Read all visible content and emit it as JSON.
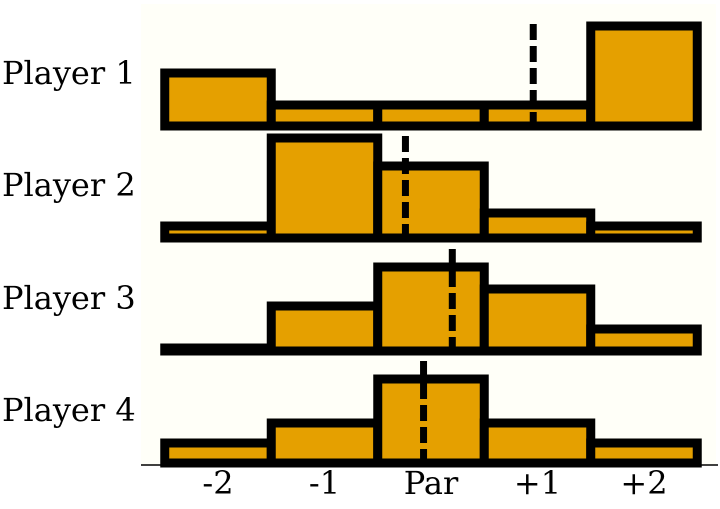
{
  "colors": {
    "bar_fill": "#e5a000",
    "bar_edge": "#000000",
    "plot_background": "#fffff8",
    "mean_line": "#000000"
  },
  "chart_data": {
    "type": "bar",
    "categories": [
      "-2",
      "-1",
      "Par",
      "+1",
      "+2"
    ],
    "grid": false,
    "legend": "none",
    "series": [
      {
        "name": "Player 1",
        "values": [
          0.53,
          0.21,
          0.21,
          0.21,
          1.0
        ],
        "mean": 0.96
      },
      {
        "name": "Player 2",
        "values": [
          0.12,
          1.0,
          0.72,
          0.25,
          0.12
        ],
        "mean": -0.24
      },
      {
        "name": "Player 3",
        "values": [
          0.0,
          0.45,
          0.84,
          0.62,
          0.22
        ],
        "mean": 0.2
      },
      {
        "name": "Player 4",
        "values": [
          0.2,
          0.4,
          0.84,
          0.4,
          0.2
        ],
        "mean": -0.07
      }
    ]
  }
}
